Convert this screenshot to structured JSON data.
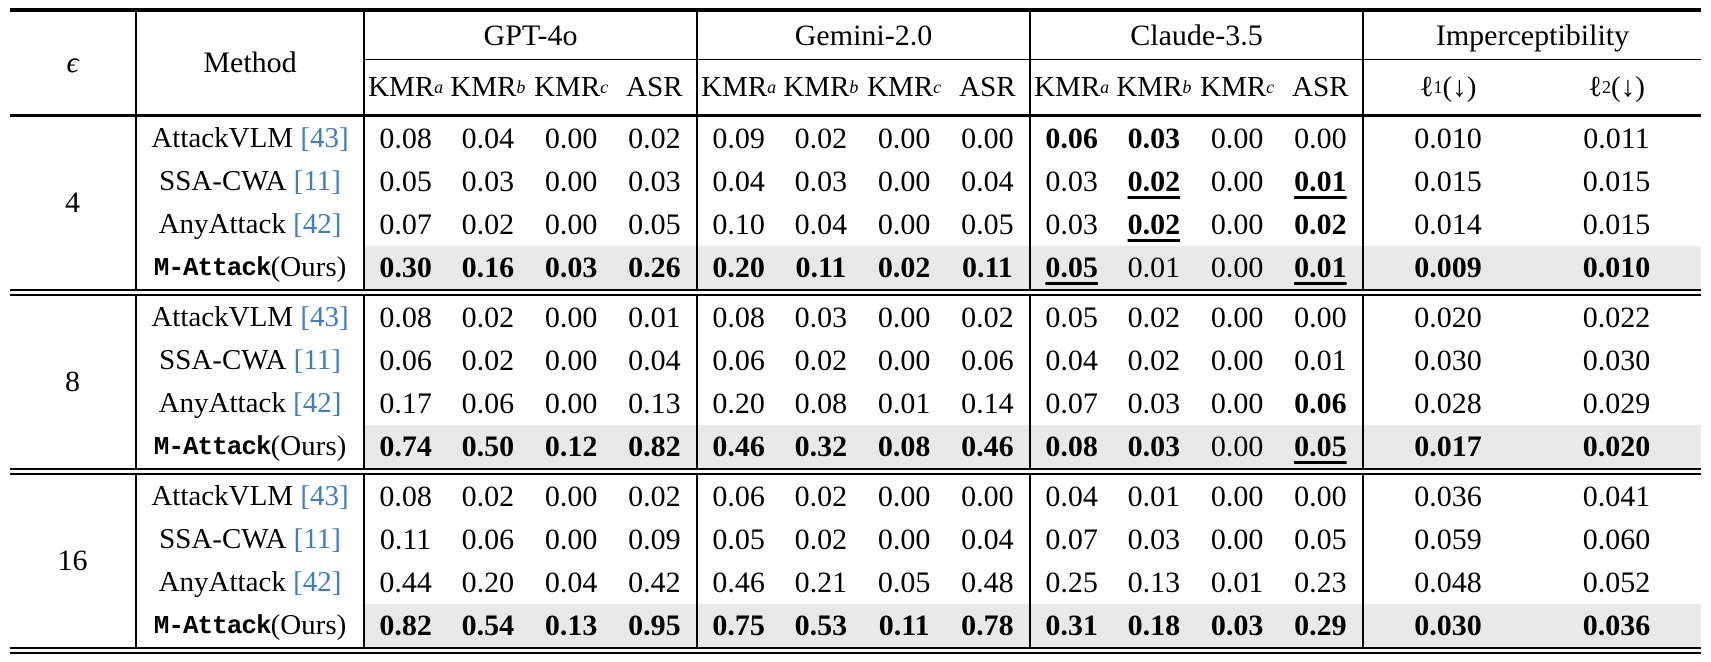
{
  "colors": {
    "citation": "#3d7dc4",
    "highlight": "#e8e8e8"
  },
  "table": {
    "header": {
      "epsilon": "ϵ",
      "method": "Method",
      "groups": [
        {
          "label": "GPT-4o",
          "subcols": [
            {
              "t": "KMR",
              "sub": "a",
              "it": true
            },
            {
              "t": "KMR",
              "sub": "b",
              "it": true
            },
            {
              "t": "KMR",
              "sub": "c",
              "it": true
            },
            {
              "t": "ASR"
            }
          ]
        },
        {
          "label": "Gemini-2.0",
          "subcols": [
            {
              "t": "KMR",
              "sub": "a",
              "it": true
            },
            {
              "t": "KMR",
              "sub": "b",
              "it": true
            },
            {
              "t": "KMR",
              "sub": "c",
              "it": true
            },
            {
              "t": "ASR"
            }
          ]
        },
        {
          "label": "Claude-3.5",
          "subcols": [
            {
              "t": "KMR",
              "sub": "a",
              "it": true
            },
            {
              "t": "KMR",
              "sub": "b",
              "it": true
            },
            {
              "t": "KMR",
              "sub": "c",
              "it": true
            },
            {
              "t": "ASR"
            }
          ]
        },
        {
          "label": "Imperceptibility",
          "subcols": [
            {
              "t": "ℓ",
              "sub": "1",
              "it": false,
              "suf": "(↓)"
            },
            {
              "t": "ℓ",
              "sub": "2",
              "it": false,
              "suf": "(↓)"
            }
          ]
        }
      ]
    },
    "groups": [
      {
        "epsilon": "4",
        "rows": [
          {
            "method": "AttackVLM",
            "cite": "[43]",
            "ours": false,
            "highlight": false,
            "cells": [
              {
                "v": "0.08"
              },
              {
                "v": "0.04"
              },
              {
                "v": "0.00"
              },
              {
                "v": "0.02"
              },
              {
                "v": "0.09"
              },
              {
                "v": "0.02"
              },
              {
                "v": "0.00"
              },
              {
                "v": "0.00"
              },
              {
                "v": "0.06",
                "b": 1
              },
              {
                "v": "0.03",
                "b": 1
              },
              {
                "v": "0.00"
              },
              {
                "v": "0.00"
              },
              {
                "v": "0.010"
              },
              {
                "v": "0.011"
              }
            ]
          },
          {
            "method": "SSA-CWA",
            "cite": "[11]",
            "ours": false,
            "highlight": false,
            "cells": [
              {
                "v": "0.05"
              },
              {
                "v": "0.03"
              },
              {
                "v": "0.00"
              },
              {
                "v": "0.03"
              },
              {
                "v": "0.04"
              },
              {
                "v": "0.03"
              },
              {
                "v": "0.00"
              },
              {
                "v": "0.04"
              },
              {
                "v": "0.03"
              },
              {
                "v": "0.02",
                "b": 1,
                "u": 1
              },
              {
                "v": "0.00"
              },
              {
                "v": "0.01",
                "b": 1,
                "u": 1
              },
              {
                "v": "0.015"
              },
              {
                "v": "0.015"
              }
            ]
          },
          {
            "method": "AnyAttack",
            "cite": "[42]",
            "ours": false,
            "highlight": false,
            "cells": [
              {
                "v": "0.07"
              },
              {
                "v": "0.02"
              },
              {
                "v": "0.00"
              },
              {
                "v": "0.05"
              },
              {
                "v": "0.10"
              },
              {
                "v": "0.04"
              },
              {
                "v": "0.00"
              },
              {
                "v": "0.05"
              },
              {
                "v": "0.03"
              },
              {
                "v": "0.02",
                "b": 1,
                "u": 1
              },
              {
                "v": "0.00"
              },
              {
                "v": "0.02",
                "b": 1
              },
              {
                "v": "0.014"
              },
              {
                "v": "0.015"
              }
            ]
          },
          {
            "method": "M-Attack",
            "suffix": " (Ours)",
            "ours": true,
            "highlight": true,
            "cells": [
              {
                "v": "0.30",
                "b": 1
              },
              {
                "v": "0.16",
                "b": 1
              },
              {
                "v": "0.03",
                "b": 1
              },
              {
                "v": "0.26",
                "b": 1
              },
              {
                "v": "0.20",
                "b": 1
              },
              {
                "v": "0.11",
                "b": 1
              },
              {
                "v": "0.02",
                "b": 1
              },
              {
                "v": "0.11",
                "b": 1
              },
              {
                "v": "0.05",
                "b": 1,
                "u": 1
              },
              {
                "v": "0.01"
              },
              {
                "v": "0.00"
              },
              {
                "v": "0.01",
                "b": 1,
                "u": 1
              },
              {
                "v": "0.009",
                "b": 1
              },
              {
                "v": "0.010",
                "b": 1
              }
            ]
          }
        ]
      },
      {
        "epsilon": "8",
        "rows": [
          {
            "method": "AttackVLM",
            "cite": "[43]",
            "ours": false,
            "highlight": false,
            "cells": [
              {
                "v": "0.08"
              },
              {
                "v": "0.02"
              },
              {
                "v": "0.00"
              },
              {
                "v": "0.01"
              },
              {
                "v": "0.08"
              },
              {
                "v": "0.03"
              },
              {
                "v": "0.00"
              },
              {
                "v": "0.02"
              },
              {
                "v": "0.05"
              },
              {
                "v": "0.02"
              },
              {
                "v": "0.00"
              },
              {
                "v": "0.00"
              },
              {
                "v": "0.020"
              },
              {
                "v": "0.022"
              }
            ]
          },
          {
            "method": "SSA-CWA",
            "cite": "[11]",
            "ours": false,
            "highlight": false,
            "cells": [
              {
                "v": "0.06"
              },
              {
                "v": "0.02"
              },
              {
                "v": "0.00"
              },
              {
                "v": "0.04"
              },
              {
                "v": "0.06"
              },
              {
                "v": "0.02"
              },
              {
                "v": "0.00"
              },
              {
                "v": "0.06"
              },
              {
                "v": "0.04"
              },
              {
                "v": "0.02"
              },
              {
                "v": "0.00"
              },
              {
                "v": "0.01"
              },
              {
                "v": "0.030"
              },
              {
                "v": "0.030"
              }
            ]
          },
          {
            "method": "AnyAttack",
            "cite": "[42]",
            "ours": false,
            "highlight": false,
            "cells": [
              {
                "v": "0.17"
              },
              {
                "v": "0.06"
              },
              {
                "v": "0.00"
              },
              {
                "v": "0.13"
              },
              {
                "v": "0.20"
              },
              {
                "v": "0.08"
              },
              {
                "v": "0.01"
              },
              {
                "v": "0.14"
              },
              {
                "v": "0.07"
              },
              {
                "v": "0.03"
              },
              {
                "v": "0.00"
              },
              {
                "v": "0.06",
                "b": 1
              },
              {
                "v": "0.028"
              },
              {
                "v": "0.029"
              }
            ]
          },
          {
            "method": "M-Attack",
            "suffix": " (Ours)",
            "ours": true,
            "highlight": true,
            "cells": [
              {
                "v": "0.74",
                "b": 1
              },
              {
                "v": "0.50",
                "b": 1
              },
              {
                "v": "0.12",
                "b": 1
              },
              {
                "v": "0.82",
                "b": 1
              },
              {
                "v": "0.46",
                "b": 1
              },
              {
                "v": "0.32",
                "b": 1
              },
              {
                "v": "0.08",
                "b": 1
              },
              {
                "v": "0.46",
                "b": 1
              },
              {
                "v": "0.08",
                "b": 1
              },
              {
                "v": "0.03",
                "b": 1
              },
              {
                "v": "0.00"
              },
              {
                "v": "0.05",
                "b": 1,
                "u": 1
              },
              {
                "v": "0.017",
                "b": 1
              },
              {
                "v": "0.020",
                "b": 1
              }
            ]
          }
        ]
      },
      {
        "epsilon": "16",
        "rows": [
          {
            "method": "AttackVLM",
            "cite": "[43]",
            "ours": false,
            "highlight": false,
            "cells": [
              {
                "v": "0.08"
              },
              {
                "v": "0.02"
              },
              {
                "v": "0.00"
              },
              {
                "v": "0.02"
              },
              {
                "v": "0.06"
              },
              {
                "v": "0.02"
              },
              {
                "v": "0.00"
              },
              {
                "v": "0.00"
              },
              {
                "v": "0.04"
              },
              {
                "v": "0.01"
              },
              {
                "v": "0.00"
              },
              {
                "v": "0.00"
              },
              {
                "v": "0.036"
              },
              {
                "v": "0.041"
              }
            ]
          },
          {
            "method": "SSA-CWA",
            "cite": "[11]",
            "ours": false,
            "highlight": false,
            "cells": [
              {
                "v": "0.11"
              },
              {
                "v": "0.06"
              },
              {
                "v": "0.00"
              },
              {
                "v": "0.09"
              },
              {
                "v": "0.05"
              },
              {
                "v": "0.02"
              },
              {
                "v": "0.00"
              },
              {
                "v": "0.04"
              },
              {
                "v": "0.07"
              },
              {
                "v": "0.03"
              },
              {
                "v": "0.00"
              },
              {
                "v": "0.05"
              },
              {
                "v": "0.059"
              },
              {
                "v": "0.060"
              }
            ]
          },
          {
            "method": "AnyAttack",
            "cite": "[42]",
            "ours": false,
            "highlight": false,
            "cells": [
              {
                "v": "0.44"
              },
              {
                "v": "0.20"
              },
              {
                "v": "0.04"
              },
              {
                "v": "0.42"
              },
              {
                "v": "0.46"
              },
              {
                "v": "0.21"
              },
              {
                "v": "0.05"
              },
              {
                "v": "0.48"
              },
              {
                "v": "0.25"
              },
              {
                "v": "0.13"
              },
              {
                "v": "0.01"
              },
              {
                "v": "0.23"
              },
              {
                "v": "0.048"
              },
              {
                "v": "0.052"
              }
            ]
          },
          {
            "method": "M-Attack",
            "suffix": " (Ours)",
            "ours": true,
            "highlight": true,
            "cells": [
              {
                "v": "0.82",
                "b": 1
              },
              {
                "v": "0.54",
                "b": 1
              },
              {
                "v": "0.13",
                "b": 1
              },
              {
                "v": "0.95",
                "b": 1
              },
              {
                "v": "0.75",
                "b": 1
              },
              {
                "v": "0.53",
                "b": 1
              },
              {
                "v": "0.11",
                "b": 1
              },
              {
                "v": "0.78",
                "b": 1
              },
              {
                "v": "0.31",
                "b": 1
              },
              {
                "v": "0.18",
                "b": 1
              },
              {
                "v": "0.03",
                "b": 1
              },
              {
                "v": "0.29",
                "b": 1
              },
              {
                "v": "0.030",
                "b": 1
              },
              {
                "v": "0.036",
                "b": 1
              }
            ]
          }
        ]
      }
    ]
  }
}
